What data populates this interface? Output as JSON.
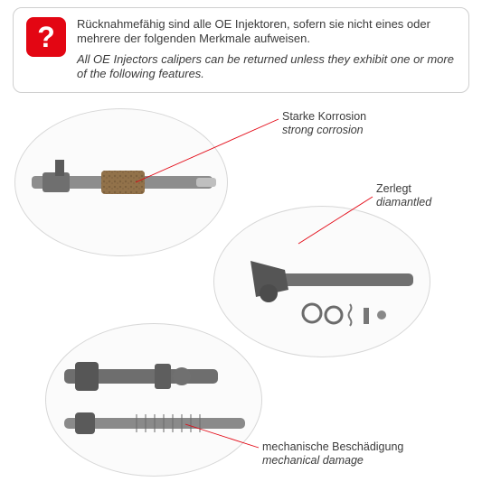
{
  "info": {
    "icon_glyph": "?",
    "icon_bg": "#e30613",
    "icon_fg": "#ffffff",
    "de": "Rücknahmefähig sind alle  OE Injektoren, sofern sie nicht eines oder mehrere der folgenden Merkmale aufweisen.",
    "en": "All OE Injectors calipers can be returned unless they exhibit one or more of the following features."
  },
  "labels": {
    "corrosion": {
      "de": "Starke Korrosion",
      "en": "strong corrosion"
    },
    "dismantled": {
      "de": "Zerlegt",
      "en": "diamantled"
    },
    "mechanical": {
      "de": "mechanische Beschädigung",
      "en": "mechanical damage"
    }
  },
  "style": {
    "lead_color": "#e30613",
    "lead_width": 0.9,
    "circle_border": "#d7d7d7",
    "circle_fill": "#fbfbfb",
    "text_color": "#3b3b3b",
    "box_border": "#cfcfcf",
    "font_size_body": 13,
    "font_size_label": 12.5
  }
}
